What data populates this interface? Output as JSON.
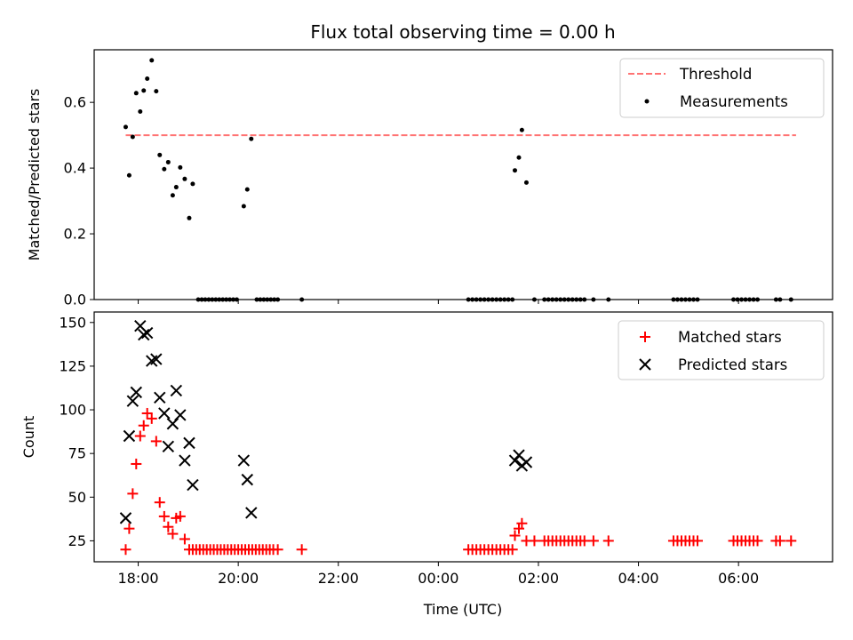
{
  "chart_data": {
    "type": "scatter",
    "title": "Flux total observing time = 0.00 h",
    "xlabel": "Time (UTC)",
    "x_unit": "hours (17 = 17:00, 24 = 00:00 next day)",
    "xlim": [
      17.12,
      31.88
    ],
    "xticks": [
      {
        "value": 18,
        "label": "18:00"
      },
      {
        "value": 20,
        "label": "20:00"
      },
      {
        "value": 22,
        "label": "22:00"
      },
      {
        "value": 24,
        "label": "00:00"
      },
      {
        "value": 26,
        "label": "02:00"
      },
      {
        "value": 28,
        "label": "04:00"
      },
      {
        "value": 30,
        "label": "06:00"
      }
    ],
    "panels": [
      {
        "ylabel": "Matched/Predicted stars",
        "ylim": [
          0,
          0.76
        ],
        "yticks": [
          {
            "value": 0.0,
            "label": "0.0"
          },
          {
            "value": 0.2,
            "label": "0.2"
          },
          {
            "value": 0.4,
            "label": "0.4"
          },
          {
            "value": 0.6,
            "label": "0.6"
          }
        ],
        "legend": {
          "position": "top-right",
          "entries": [
            "Threshold",
            "Measurements"
          ]
        },
        "threshold": {
          "name": "Threshold",
          "value": 0.5,
          "x_start": 17.75,
          "x_end": 31.15,
          "color": "#ff7373"
        },
        "measurements": {
          "name": "Measurements",
          "color": "#000000",
          "points": [
            [
              17.75,
              0.525
            ],
            [
              17.82,
              0.378
            ],
            [
              17.89,
              0.495
            ],
            [
              17.96,
              0.628
            ],
            [
              18.04,
              0.572
            ],
            [
              18.11,
              0.636
            ],
            [
              18.18,
              0.672
            ],
            [
              18.27,
              0.728
            ],
            [
              18.36,
              0.634
            ],
            [
              18.43,
              0.44
            ],
            [
              18.52,
              0.397
            ],
            [
              18.6,
              0.418
            ],
            [
              18.69,
              0.317
            ],
            [
              18.76,
              0.342
            ],
            [
              18.84,
              0.402
            ],
            [
              18.93,
              0.367
            ],
            [
              19.02,
              0.248
            ],
            [
              19.09,
              0.352
            ],
            [
              19.2,
              0.0
            ],
            [
              19.27,
              0.0
            ],
            [
              19.34,
              0.0
            ],
            [
              19.41,
              0.0
            ],
            [
              19.48,
              0.0
            ],
            [
              19.55,
              0.0
            ],
            [
              19.62,
              0.0
            ],
            [
              19.69,
              0.0
            ],
            [
              19.76,
              0.0
            ],
            [
              19.83,
              0.0
            ],
            [
              19.9,
              0.0
            ],
            [
              19.97,
              0.0
            ],
            [
              20.11,
              0.284
            ],
            [
              20.18,
              0.335
            ],
            [
              20.26,
              0.489
            ],
            [
              20.37,
              0.0
            ],
            [
              20.44,
              0.0
            ],
            [
              20.51,
              0.0
            ],
            [
              20.58,
              0.0
            ],
            [
              20.65,
              0.0
            ],
            [
              20.72,
              0.0
            ],
            [
              20.79,
              0.0
            ],
            [
              21.27,
              0.0
            ],
            [
              24.6,
              0.0
            ],
            [
              24.68,
              0.0
            ],
            [
              24.76,
              0.0
            ],
            [
              24.84,
              0.0
            ],
            [
              24.92,
              0.0
            ],
            [
              25.0,
              0.0
            ],
            [
              25.08,
              0.0
            ],
            [
              25.16,
              0.0
            ],
            [
              25.24,
              0.0
            ],
            [
              25.32,
              0.0
            ],
            [
              25.4,
              0.0
            ],
            [
              25.48,
              0.0
            ],
            [
              25.53,
              0.393
            ],
            [
              25.61,
              0.432
            ],
            [
              25.67,
              0.516
            ],
            [
              25.76,
              0.356
            ],
            [
              25.92,
              0.0
            ],
            [
              26.12,
              0.0
            ],
            [
              26.2,
              0.0
            ],
            [
              26.28,
              0.0
            ],
            [
              26.36,
              0.0
            ],
            [
              26.44,
              0.0
            ],
            [
              26.52,
              0.0
            ],
            [
              26.6,
              0.0
            ],
            [
              26.68,
              0.0
            ],
            [
              26.76,
              0.0
            ],
            [
              26.84,
              0.0
            ],
            [
              26.92,
              0.0
            ],
            [
              27.1,
              0.0
            ],
            [
              27.4,
              0.0
            ],
            [
              28.7,
              0.0
            ],
            [
              28.78,
              0.0
            ],
            [
              28.86,
              0.0
            ],
            [
              28.94,
              0.0
            ],
            [
              29.02,
              0.0
            ],
            [
              29.1,
              0.0
            ],
            [
              29.18,
              0.0
            ],
            [
              29.9,
              0.0
            ],
            [
              29.98,
              0.0
            ],
            [
              30.06,
              0.0
            ],
            [
              30.14,
              0.0
            ],
            [
              30.22,
              0.0
            ],
            [
              30.3,
              0.0
            ],
            [
              30.38,
              0.0
            ],
            [
              30.75,
              0.0
            ],
            [
              30.83,
              0.0
            ],
            [
              31.05,
              0.0
            ]
          ]
        }
      },
      {
        "ylabel": "Count",
        "ylim": [
          13,
          156
        ],
        "yticks": [
          {
            "value": 25,
            "label": "25"
          },
          {
            "value": 50,
            "label": "50"
          },
          {
            "value": 75,
            "label": "75"
          },
          {
            "value": 100,
            "label": "100"
          },
          {
            "value": 125,
            "label": "125"
          },
          {
            "value": 150,
            "label": "150"
          }
        ],
        "legend": {
          "position": "top-right",
          "entries": [
            "Matched stars",
            "Predicted stars"
          ]
        },
        "series": [
          {
            "name": "Matched stars",
            "marker": "plus",
            "color": "#ff0000",
            "points": [
              [
                17.75,
                20
              ],
              [
                17.82,
                32
              ],
              [
                17.89,
                52
              ],
              [
                17.96,
                69
              ],
              [
                18.04,
                85
              ],
              [
                18.11,
                91
              ],
              [
                18.18,
                98
              ],
              [
                18.27,
                95
              ],
              [
                18.36,
                82
              ],
              [
                18.43,
                47
              ],
              [
                18.52,
                39
              ],
              [
                18.6,
                33
              ],
              [
                18.69,
                29
              ],
              [
                18.76,
                38
              ],
              [
                18.84,
                39
              ],
              [
                18.93,
                26
              ],
              [
                19.02,
                20
              ],
              [
                19.09,
                20
              ],
              [
                19.16,
                20
              ],
              [
                19.23,
                20
              ],
              [
                19.3,
                20
              ],
              [
                19.37,
                20
              ],
              [
                19.44,
                20
              ],
              [
                19.51,
                20
              ],
              [
                19.58,
                20
              ],
              [
                19.65,
                20
              ],
              [
                19.72,
                20
              ],
              [
                19.79,
                20
              ],
              [
                19.86,
                20
              ],
              [
                19.93,
                20
              ],
              [
                20.0,
                20
              ],
              [
                20.07,
                20
              ],
              [
                20.14,
                20
              ],
              [
                20.21,
                20
              ],
              [
                20.28,
                20
              ],
              [
                20.35,
                20
              ],
              [
                20.42,
                20
              ],
              [
                20.49,
                20
              ],
              [
                20.56,
                20
              ],
              [
                20.63,
                20
              ],
              [
                20.7,
                20
              ],
              [
                20.79,
                20
              ],
              [
                21.27,
                20
              ],
              [
                24.6,
                20
              ],
              [
                24.68,
                20
              ],
              [
                24.76,
                20
              ],
              [
                24.84,
                20
              ],
              [
                24.92,
                20
              ],
              [
                25.0,
                20
              ],
              [
                25.08,
                20
              ],
              [
                25.16,
                20
              ],
              [
                25.24,
                20
              ],
              [
                25.32,
                20
              ],
              [
                25.4,
                20
              ],
              [
                25.48,
                20
              ],
              [
                25.53,
                28
              ],
              [
                25.61,
                32
              ],
              [
                25.67,
                35
              ],
              [
                25.76,
                25
              ],
              [
                25.92,
                25
              ],
              [
                26.12,
                25
              ],
              [
                26.2,
                25
              ],
              [
                26.28,
                25
              ],
              [
                26.36,
                25
              ],
              [
                26.44,
                25
              ],
              [
                26.52,
                25
              ],
              [
                26.6,
                25
              ],
              [
                26.68,
                25
              ],
              [
                26.76,
                25
              ],
              [
                26.84,
                25
              ],
              [
                26.92,
                25
              ],
              [
                27.1,
                25
              ],
              [
                27.4,
                25
              ],
              [
                28.7,
                25
              ],
              [
                28.78,
                25
              ],
              [
                28.86,
                25
              ],
              [
                28.94,
                25
              ],
              [
                29.02,
                25
              ],
              [
                29.1,
                25
              ],
              [
                29.18,
                25
              ],
              [
                29.9,
                25
              ],
              [
                29.98,
                25
              ],
              [
                30.06,
                25
              ],
              [
                30.14,
                25
              ],
              [
                30.22,
                25
              ],
              [
                30.3,
                25
              ],
              [
                30.38,
                25
              ],
              [
                30.75,
                25
              ],
              [
                30.83,
                25
              ],
              [
                31.05,
                25
              ]
            ]
          },
          {
            "name": "Predicted stars",
            "marker": "x",
            "color": "#000000",
            "points": [
              [
                17.75,
                38
              ],
              [
                17.82,
                85
              ],
              [
                17.89,
                105
              ],
              [
                17.96,
                110
              ],
              [
                18.04,
                148
              ],
              [
                18.11,
                143
              ],
              [
                18.18,
                144
              ],
              [
                18.27,
                128
              ],
              [
                18.36,
                129
              ],
              [
                18.43,
                107
              ],
              [
                18.52,
                98
              ],
              [
                18.6,
                79
              ],
              [
                18.69,
                92
              ],
              [
                18.76,
                111
              ],
              [
                18.84,
                97
              ],
              [
                18.93,
                71
              ],
              [
                19.02,
                81
              ],
              [
                19.09,
                57
              ],
              [
                20.11,
                71
              ],
              [
                20.18,
                60
              ],
              [
                20.26,
                41
              ],
              [
                25.53,
                71
              ],
              [
                25.61,
                74
              ],
              [
                25.67,
                68
              ],
              [
                25.76,
                70
              ]
            ]
          }
        ]
      }
    ]
  }
}
